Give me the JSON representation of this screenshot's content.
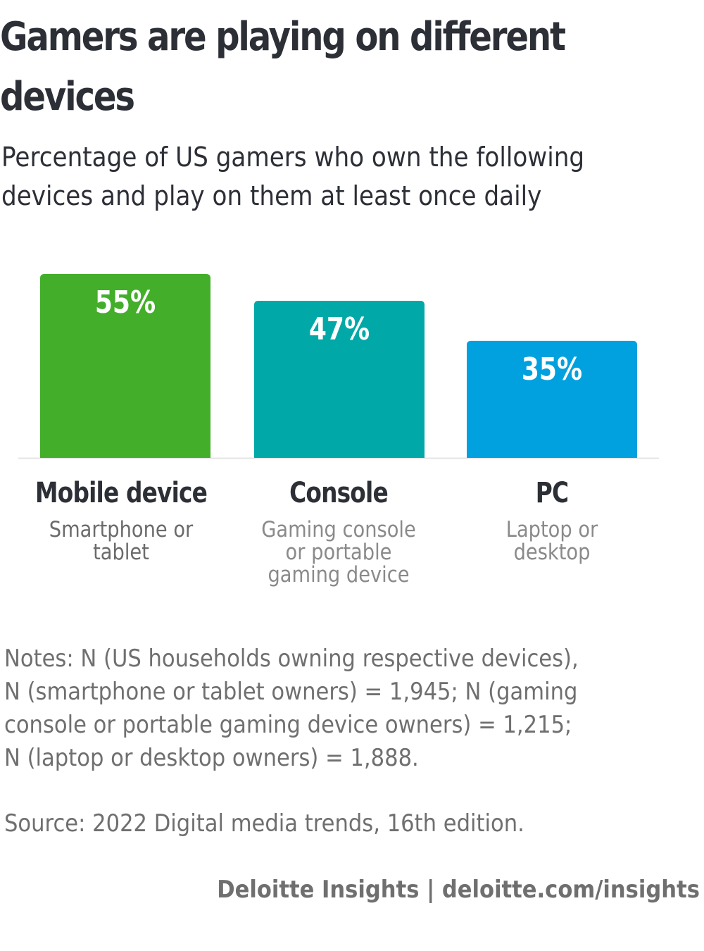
{
  "header": {
    "title_line1": "Gamers are playing on different",
    "title_line2": "devices",
    "subtitle_line1": "Percentage of US gamers who own the following",
    "subtitle_line2": "devices and play on them at least once daily"
  },
  "chart_data": {
    "type": "bar",
    "title": "Gamers are playing on different devices",
    "subtitle": "Percentage of US gamers who own the following devices and play on them at least once daily",
    "categories": [
      "Mobile device",
      "Console",
      "PC"
    ],
    "category_descriptions": [
      "Smartphone or tablet",
      "Gaming console or portable gaming device",
      "Laptop or desktop"
    ],
    "values": [
      55,
      47,
      35
    ],
    "value_labels": [
      "55%",
      "47%",
      "35%"
    ],
    "colors": [
      "#43AE2A",
      "#00A9A7",
      "#00A1DE"
    ],
    "xlabel": "",
    "ylabel": "",
    "ylim": [
      0,
      60
    ],
    "grid": false,
    "unit": "%"
  },
  "categories": [
    {
      "title": "Mobile device",
      "sub_lines": [
        "Smartphone or",
        "tablet"
      ]
    },
    {
      "title": "Console",
      "sub_lines": [
        "Gaming console",
        "or portable",
        "gaming device"
      ]
    },
    {
      "title": "PC",
      "sub_lines": [
        "Laptop or",
        "desktop"
      ]
    }
  ],
  "notes": {
    "lines": [
      "Notes: N (US households owning respective devices),",
      "N (smartphone or tablet owners) = 1,945; N (gaming",
      "console or portable gaming device owners) = 1,215;",
      "N (laptop or desktop owners) = 1,888."
    ]
  },
  "source": "Source: 2022 Digital media trends, 16th edition.",
  "credit": "Deloitte Insights | deloitte.com/insights"
}
